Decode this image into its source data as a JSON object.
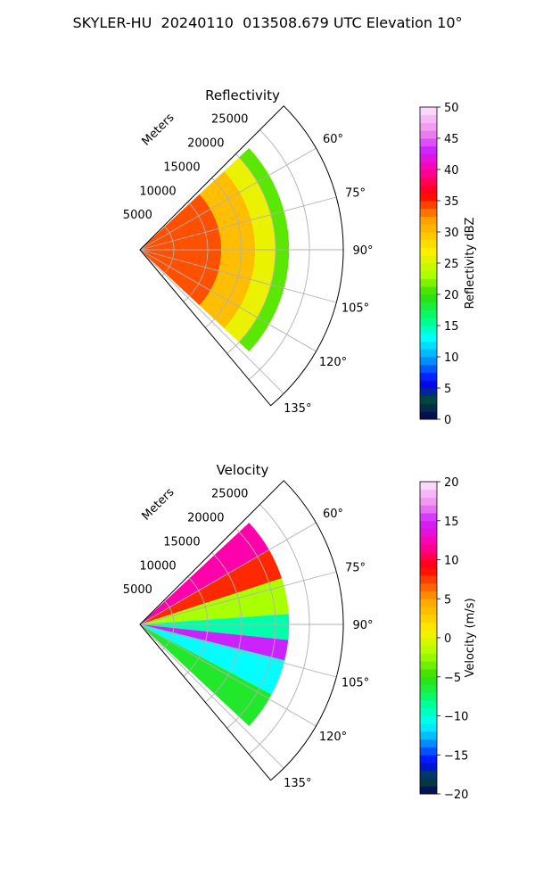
{
  "suptitle": "SKYLER-HU  20240110  013508.679 UTC Elevation 10°",
  "chart_data": [
    {
      "type": "heatmap",
      "subtype": "polar-sector",
      "title": "Reflectivity",
      "radial_label": "Meters",
      "radial_ticks": [
        5000,
        10000,
        15000,
        20000,
        25000
      ],
      "radial_tick_labels": [
        "5000",
        "10000",
        "15000",
        "20000",
        "25000"
      ],
      "radial_range": [
        0,
        30000
      ],
      "azimuth_ticks": [
        60,
        75,
        90,
        105,
        120,
        135
      ],
      "azimuth_tick_labels": [
        "60°",
        "75°",
        "90°",
        "105°",
        "120°",
        "135°"
      ],
      "azimuth_range": [
        45,
        140
      ],
      "grid": true,
      "colorbar": {
        "label": "Reflectivity dBZ",
        "range": [
          0,
          50
        ],
        "ticks": [
          0,
          5,
          10,
          15,
          20,
          25,
          30,
          35,
          40,
          45,
          50
        ],
        "tick_labels": [
          "0",
          "5",
          "10",
          "15",
          "20",
          "25",
          "30",
          "35",
          "40",
          "45",
          "50"
        ],
        "stops": [
          {
            "v": 0,
            "color": "#02005a"
          },
          {
            "v": 3,
            "color": "#004a3a"
          },
          {
            "v": 6,
            "color": "#0000ff"
          },
          {
            "v": 10,
            "color": "#00a8ff"
          },
          {
            "v": 13,
            "color": "#00ffff"
          },
          {
            "v": 16,
            "color": "#00ff80"
          },
          {
            "v": 20,
            "color": "#33dd00"
          },
          {
            "v": 23,
            "color": "#aaff00"
          },
          {
            "v": 27,
            "color": "#ffee00"
          },
          {
            "v": 32,
            "color": "#ffa000"
          },
          {
            "v": 36,
            "color": "#ff0000"
          },
          {
            "v": 40,
            "color": "#ff00aa"
          },
          {
            "v": 43,
            "color": "#cc22ff"
          },
          {
            "v": 46,
            "color": "#ee88ee"
          },
          {
            "v": 50,
            "color": "#ffe6ff"
          }
        ]
      },
      "data_extent": {
        "azimuth": [
          47,
          133
        ],
        "range_max": 22000
      },
      "band_values": [
        {
          "range": [
            0,
            12000
          ],
          "value": 34
        },
        {
          "range": [
            12000,
            17000
          ],
          "value": 30
        },
        {
          "range": [
            17000,
            20000
          ],
          "value": 26
        },
        {
          "range": [
            20000,
            22000
          ],
          "value": 21
        }
      ]
    },
    {
      "type": "heatmap",
      "subtype": "polar-sector",
      "title": "Velocity",
      "radial_label": "Meters",
      "radial_ticks": [
        5000,
        10000,
        15000,
        20000,
        25000
      ],
      "radial_tick_labels": [
        "5000",
        "10000",
        "15000",
        "20000",
        "25000"
      ],
      "radial_range": [
        0,
        30000
      ],
      "azimuth_ticks": [
        60,
        75,
        90,
        105,
        120,
        135
      ],
      "azimuth_tick_labels": [
        "60°",
        "75°",
        "90°",
        "105°",
        "120°",
        "135°"
      ],
      "azimuth_range": [
        45,
        140
      ],
      "grid": true,
      "colorbar": {
        "label": "Velocity (m/s)",
        "range": [
          -20,
          20
        ],
        "ticks": [
          -20,
          -15,
          -10,
          -5,
          0,
          5,
          10,
          15,
          20
        ],
        "tick_labels": [
          "−20",
          "−15",
          "−10",
          "−5",
          "0",
          "5",
          "10",
          "15",
          "20"
        ],
        "stops": [
          {
            "v": -20,
            "color": "#02005a"
          },
          {
            "v": -18,
            "color": "#004a3a"
          },
          {
            "v": -16,
            "color": "#0000ff"
          },
          {
            "v": -13,
            "color": "#00a8ff"
          },
          {
            "v": -11,
            "color": "#00ffff"
          },
          {
            "v": -8,
            "color": "#00ff80"
          },
          {
            "v": -5,
            "color": "#33dd00"
          },
          {
            "v": -2,
            "color": "#aaff00"
          },
          {
            "v": 1,
            "color": "#ffee00"
          },
          {
            "v": 5,
            "color": "#ffa000"
          },
          {
            "v": 9,
            "color": "#ff0000"
          },
          {
            "v": 12,
            "color": "#ff00aa"
          },
          {
            "v": 15,
            "color": "#cc22ff"
          },
          {
            "v": 17,
            "color": "#ee88ee"
          },
          {
            "v": 20,
            "color": "#ffe6ff"
          }
        ]
      },
      "data_extent": {
        "azimuth": [
          47,
          133
        ],
        "range_max": 22000
      },
      "sector_values": [
        {
          "azimuth": [
            47,
            60
          ],
          "value": 12
        },
        {
          "azimuth": [
            60,
            72
          ],
          "value": 8
        },
        {
          "azimuth": [
            72,
            86
          ],
          "value": -2
        },
        {
          "azimuth": [
            86,
            96
          ],
          "value": -9
        },
        {
          "azimuth": [
            96,
            104
          ],
          "value": 15
        },
        {
          "azimuth": [
            104,
            118
          ],
          "value": -11
        },
        {
          "azimuth": [
            118,
            133
          ],
          "value": -6
        }
      ]
    }
  ]
}
